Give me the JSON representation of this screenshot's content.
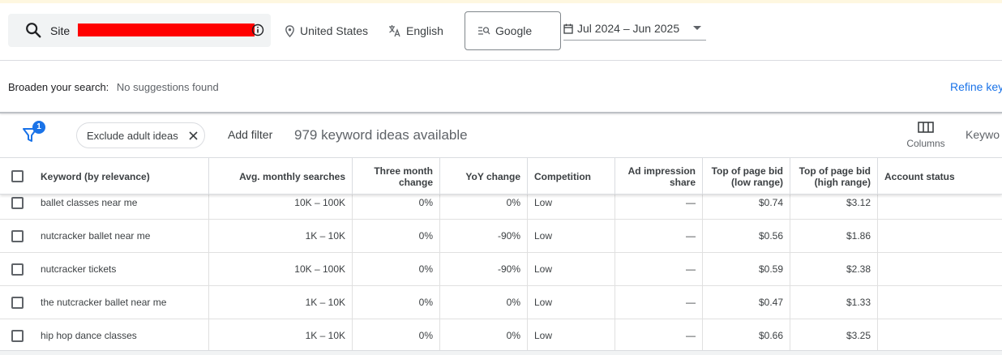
{
  "search": {
    "label": "Site",
    "info_icon": "info-icon",
    "icon": "search-icon"
  },
  "location": {
    "label": "United States",
    "icon": "location-pin-icon"
  },
  "language": {
    "label": "English",
    "icon": "translate-icon"
  },
  "network": {
    "label": "Google",
    "icon": "search-network-icon"
  },
  "date_range": {
    "label": "Jul 2024 – Jun 2025",
    "icon": "calendar-icon"
  },
  "broaden": {
    "label": "Broaden your search:",
    "value": "No suggestions found"
  },
  "refine": {
    "label": "Refine key"
  },
  "filters": {
    "badge_count": "1",
    "chip_label": "Exclude adult ideas",
    "add_filter": "Add filter",
    "ideas_count": "979 keyword ideas available",
    "columns_label": "Columns",
    "keyword_view_label": "Keywo"
  },
  "table": {
    "headers": {
      "keyword": "Keyword (by relevance)",
      "avg": "Avg. monthly searches",
      "three_month": "Three month change",
      "yoy": "YoY change",
      "competition": "Competition",
      "ad_impr": "Ad impression share",
      "bid_low": "Top of page bid (low range)",
      "bid_high": "Top of page bid (high range)",
      "account": "Account status"
    },
    "rows": [
      {
        "keyword": "ballet classes near me",
        "avg": "10K – 100K",
        "three_month": "0%",
        "yoy": "0%",
        "competition": "Low",
        "ad_impr": "—",
        "bid_low": "$0.74",
        "bid_high": "$3.12",
        "account": ""
      },
      {
        "keyword": "nutcracker ballet near me",
        "avg": "1K – 10K",
        "three_month": "0%",
        "yoy": "-90%",
        "competition": "Low",
        "ad_impr": "—",
        "bid_low": "$0.56",
        "bid_high": "$1.86",
        "account": ""
      },
      {
        "keyword": "nutcracker tickets",
        "avg": "10K – 100K",
        "three_month": "0%",
        "yoy": "-90%",
        "competition": "Low",
        "ad_impr": "—",
        "bid_low": "$0.59",
        "bid_high": "$2.38",
        "account": ""
      },
      {
        "keyword": "the nutcracker ballet near me",
        "avg": "1K – 10K",
        "three_month": "0%",
        "yoy": "0%",
        "competition": "Low",
        "ad_impr": "—",
        "bid_low": "$0.47",
        "bid_high": "$1.33",
        "account": ""
      },
      {
        "keyword": "hip hop dance classes",
        "avg": "1K – 10K",
        "three_month": "0%",
        "yoy": "0%",
        "competition": "Low",
        "ad_impr": "—",
        "bid_low": "$0.66",
        "bid_high": "$3.25",
        "account": ""
      }
    ]
  },
  "colors": {
    "accent": "#1a73e8",
    "redaction": "#ff0000"
  }
}
